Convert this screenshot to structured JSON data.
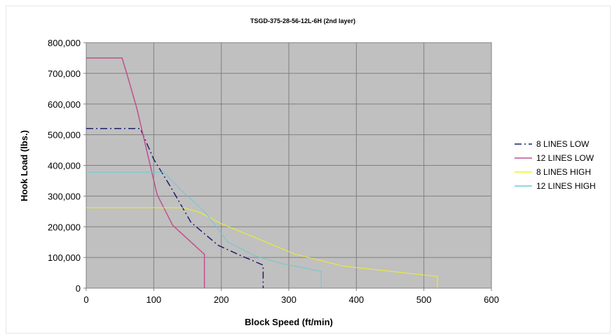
{
  "chart_data": {
    "type": "line",
    "title": "TSGD-375-28-56-12L-6H (2nd layer)",
    "xlabel": "Block Speed (ft/min)",
    "ylabel": "Hook Load (lbs.)",
    "xlim": [
      0,
      600
    ],
    "ylim": [
      0,
      800000
    ],
    "x_ticks": [
      0,
      100,
      200,
      300,
      400,
      500,
      600
    ],
    "y_ticks": [
      0,
      100000,
      200000,
      300000,
      400000,
      500000,
      600000,
      700000,
      800000
    ],
    "x_tick_labels": [
      "0",
      "100",
      "200",
      "300",
      "400",
      "500",
      "600"
    ],
    "y_tick_labels": [
      "0",
      "100,000",
      "200,000",
      "300,000",
      "400,000",
      "500,000",
      "600,000",
      "700,000",
      "800,000"
    ],
    "grid": true,
    "plot_background": "#c0c0c0",
    "legend_position": "right",
    "series": [
      {
        "name": "8 LINES LOW",
        "color": "#1f1f6e",
        "dash": "dash-dot",
        "points": [
          [
            0,
            520000
          ],
          [
            80,
            520000
          ],
          [
            100,
            420000
          ],
          [
            125,
            330000
          ],
          [
            155,
            215000
          ],
          [
            195,
            140000
          ],
          [
            230,
            105000
          ],
          [
            262,
            75000
          ],
          [
            262,
            0
          ]
        ]
      },
      {
        "name": "12 LINES LOW",
        "color": "#c0508c",
        "dash": "solid",
        "points": [
          [
            0,
            750000
          ],
          [
            53,
            750000
          ],
          [
            60,
            700000
          ],
          [
            75,
            585000
          ],
          [
            105,
            305000
          ],
          [
            128,
            205000
          ],
          [
            175,
            110000
          ],
          [
            175,
            0
          ]
        ]
      },
      {
        "name": "8 LINES HIGH",
        "color": "#f0f028",
        "dash": "solid",
        "points": [
          [
            0,
            262000
          ],
          [
            145,
            262000
          ],
          [
            170,
            245000
          ],
          [
            200,
            210000
          ],
          [
            250,
            165000
          ],
          [
            310,
            110000
          ],
          [
            380,
            72000
          ],
          [
            450,
            55000
          ],
          [
            520,
            38000
          ],
          [
            520,
            0
          ]
        ]
      },
      {
        "name": "12 LINES HIGH",
        "color": "#6ec8d2",
        "dash": "solid",
        "points": [
          [
            0,
            378000
          ],
          [
            115,
            378000
          ],
          [
            140,
            320000
          ],
          [
            175,
            250000
          ],
          [
            210,
            150000
          ],
          [
            250,
            105000
          ],
          [
            290,
            80000
          ],
          [
            348,
            55000
          ],
          [
            348,
            0
          ]
        ]
      }
    ]
  }
}
